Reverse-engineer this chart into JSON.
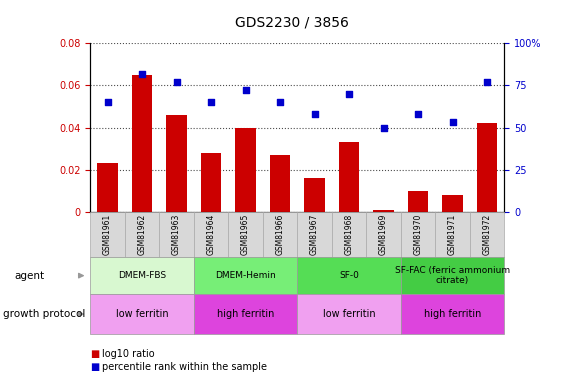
{
  "title": "GDS2230 / 3856",
  "samples": [
    "GSM81961",
    "GSM81962",
    "GSM81963",
    "GSM81964",
    "GSM81965",
    "GSM81966",
    "GSM81967",
    "GSM81968",
    "GSM81969",
    "GSM81970",
    "GSM81971",
    "GSM81972"
  ],
  "log10_ratio": [
    0.023,
    0.065,
    0.046,
    0.028,
    0.04,
    0.027,
    0.016,
    0.033,
    0.001,
    0.01,
    0.008,
    0.042
  ],
  "percentile_rank": [
    65,
    82,
    77,
    65,
    72,
    65,
    58,
    70,
    50,
    58,
    53,
    77
  ],
  "bar_color": "#cc0000",
  "dot_color": "#0000cc",
  "ylim_left": [
    0,
    0.08
  ],
  "ylim_right": [
    0,
    100
  ],
  "yticks_left": [
    0,
    0.02,
    0.04,
    0.06,
    0.08
  ],
  "yticks_right": [
    0,
    25,
    50,
    75,
    100
  ],
  "ytick_labels_left": [
    "0",
    "0.02",
    "0.04",
    "0.06",
    "0.08"
  ],
  "ytick_labels_right": [
    "0",
    "25",
    "50",
    "75",
    "100%"
  ],
  "agent_groups": [
    {
      "label": "DMEM-FBS",
      "start": 0,
      "end": 3,
      "color": "#d8f8d0"
    },
    {
      "label": "DMEM-Hemin",
      "start": 3,
      "end": 6,
      "color": "#77ee77"
    },
    {
      "label": "SF-0",
      "start": 6,
      "end": 9,
      "color": "#55dd55"
    },
    {
      "label": "SF-FAC (ferric ammonium\ncitrate)",
      "start": 9,
      "end": 12,
      "color": "#44cc44"
    }
  ],
  "protocol_groups": [
    {
      "label": "low ferritin",
      "start": 0,
      "end": 3,
      "color": "#f0a0f0"
    },
    {
      "label": "high ferritin",
      "start": 3,
      "end": 6,
      "color": "#dd44dd"
    },
    {
      "label": "low ferritin",
      "start": 6,
      "end": 9,
      "color": "#f0a0f0"
    },
    {
      "label": "high ferritin",
      "start": 9,
      "end": 12,
      "color": "#dd44dd"
    }
  ],
  "legend_bar_label": "log10 ratio",
  "legend_dot_label": "percentile rank within the sample",
  "title_fontsize": 10,
  "tick_fontsize": 7,
  "axis_label_color_left": "#cc0000",
  "axis_label_color_right": "#0000cc",
  "sample_box_color": "#d8d8d8",
  "left_label_color": "#888888"
}
